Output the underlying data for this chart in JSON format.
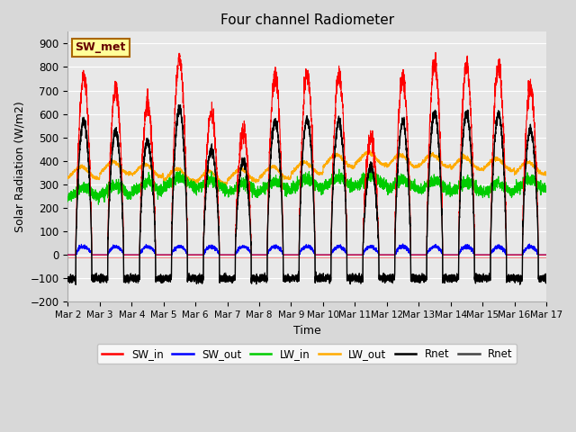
{
  "title": "Four channel Radiometer",
  "xlabel": "Time",
  "ylabel": "Solar Radiation (W/m2)",
  "ylim": [
    -200,
    950
  ],
  "yticks": [
    -200,
    -100,
    0,
    100,
    200,
    300,
    400,
    500,
    600,
    700,
    800,
    900
  ],
  "num_days": 15,
  "legend_labels": [
    "SW_in",
    "SW_out",
    "LW_in",
    "LW_out",
    "Rnet",
    "Rnet"
  ],
  "legend_colors": [
    "#ff0000",
    "#0000ff",
    "#00cc00",
    "#ffaa00",
    "#000000",
    "#444444"
  ],
  "annotation_text": "SW_met",
  "annotation_bg": "#ffff99",
  "annotation_border": "#aa6600",
  "sw_in_peaks": [
    760,
    700,
    640,
    830,
    600,
    530,
    760,
    770,
    760,
    500,
    750,
    810,
    800,
    800,
    710
  ],
  "lw_out_base": [
    350,
    370,
    360,
    340,
    330,
    340,
    350,
    370,
    400,
    410,
    400,
    400,
    390,
    385,
    370
  ],
  "lw_in_base": [
    265,
    275,
    290,
    310,
    300,
    285,
    295,
    305,
    310,
    315,
    300,
    295,
    290,
    285,
    300
  ],
  "rnet_night": -100,
  "fig_width": 6.4,
  "fig_height": 4.8,
  "dpi": 100,
  "title_fontsize": 11,
  "bg_color": "#d8d8d8",
  "plot_bg_color": "#e8e8e8",
  "grid_color": "#ffffff"
}
